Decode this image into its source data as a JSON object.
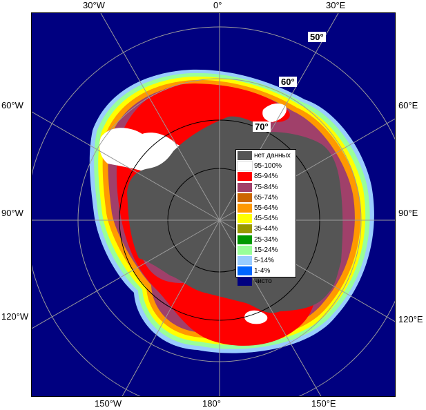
{
  "map": {
    "edge_labels": {
      "top": [
        "30°W",
        "0°",
        "30°E"
      ],
      "bottom": [
        "150°W",
        "180°",
        "150°E"
      ],
      "left": [
        "60°W",
        "90°W",
        "120°W"
      ],
      "right": [
        "60°E",
        "90°E",
        "120°E"
      ]
    },
    "latitude_labels": [
      "50°",
      "60°",
      "70°"
    ],
    "colors": {
      "ocean": "#000080",
      "land": "#555555",
      "grid": "#9a9a9a"
    }
  },
  "legend": {
    "items": [
      {
        "label": "нет данных",
        "color": "#555555"
      },
      {
        "label": "95-100%",
        "color": "#ffffff"
      },
      {
        "label": "85-94%",
        "color": "#ff0000"
      },
      {
        "label": "75-84%",
        "color": "#a0406a"
      },
      {
        "label": "65-74%",
        "color": "#cc6600"
      },
      {
        "label": "55-64%",
        "color": "#ff9900"
      },
      {
        "label": "45-54%",
        "color": "#ffff00"
      },
      {
        "label": "35-44%",
        "color": "#999900"
      },
      {
        "label": "25-34%",
        "color": "#009900"
      },
      {
        "label": "15-24%",
        "color": "#99ff99"
      },
      {
        "label": "5-14%",
        "color": "#99ccff"
      },
      {
        "label": "1-4%",
        "color": "#0066ff"
      },
      {
        "label": "чисто",
        "color": "#000080"
      }
    ]
  }
}
